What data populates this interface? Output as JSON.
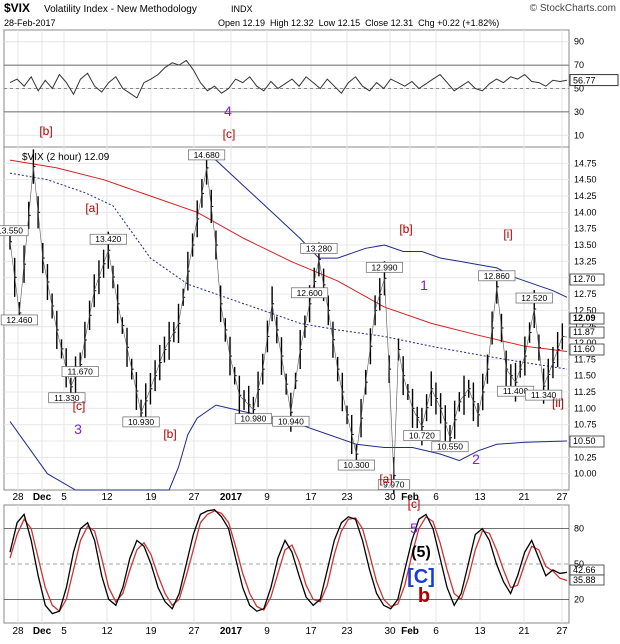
{
  "header": {
    "symbol": "$VIX",
    "name": "Volatility Index - New Methodology",
    "exchange": "INDX",
    "brand": "© StockCharts.com",
    "date": "28-Feb-2017",
    "ohlc": "Open 12.19  High 12.32  Low 12.15  Close 12.31  Chg +0.22 (+1.82%)",
    "legend": "$VIX (2 hour) 12.09"
  },
  "colors": {
    "price_line": "#000000",
    "ma_red": "#d62020",
    "ma_dotted": "#1f2a8c",
    "band": "#1f2a8c",
    "wave_red": "#b00000",
    "wave_purple": "#8a1bd6",
    "wave_blue": "#1a3cd8",
    "rsi_line": "#333333",
    "stoch_k": "#000000",
    "stoch_d": "#cc3333"
  },
  "x_axis": {
    "top_labels": [
      "28",
      "Dec",
      "5",
      "12",
      "19",
      "27",
      "2017",
      "9",
      "17",
      "23",
      "30",
      "Feb",
      "6",
      "13",
      "21",
      "27"
    ],
    "bottom_labels": [
      "28",
      "Dec",
      "5",
      "12",
      "19",
      "27",
      "2017",
      "9",
      "17",
      "23",
      "30",
      "Feb",
      "6",
      "13",
      "21",
      "27"
    ],
    "positions": [
      18,
      42,
      64,
      107,
      151,
      194,
      231,
      267,
      311,
      347,
      390,
      410,
      436,
      480,
      524,
      562
    ]
  },
  "chart_data": [
    {
      "type": "line",
      "name": "RSI panel",
      "ylim": [
        0,
        100
      ],
      "ticks": [
        10,
        30,
        50,
        70,
        90
      ],
      "reference_lines": [
        30,
        70
      ],
      "last_value_label": "56.77",
      "y": [
        55,
        58,
        52,
        60,
        48,
        57,
        50,
        62,
        55,
        45,
        58,
        63,
        52,
        47,
        55,
        60,
        50,
        46,
        42,
        55,
        58,
        62,
        68,
        72,
        70,
        74,
        66,
        55,
        48,
        52,
        46,
        50,
        58,
        55,
        60,
        52,
        48,
        56,
        50,
        54,
        58,
        52,
        60,
        55,
        50,
        58,
        52,
        46,
        55,
        60,
        52,
        48,
        55,
        50,
        58,
        55,
        52,
        56,
        50,
        54,
        58,
        62,
        55,
        48,
        52,
        56,
        50,
        48,
        54,
        58,
        55,
        60,
        58,
        62,
        56,
        55,
        52,
        57,
        56,
        57
      ]
    },
    {
      "type": "line",
      "name": "$VIX (2 hour)",
      "ylim": [
        9.75,
        15.0
      ],
      "y_ticks": [
        "10.00",
        "10.25",
        "10.50",
        "10.75",
        "11.00",
        "11.25",
        "11.50",
        "11.75",
        "12.00",
        "12.25",
        "12.50",
        "12.75",
        "13.00",
        "13.25",
        "13.50",
        "13.75",
        "14.00",
        "14.25",
        "14.50",
        "14.75"
      ],
      "right_labels": [
        "12.70",
        "12.09",
        "11.87",
        "11.60",
        "10.50"
      ],
      "price_annotations": [
        "14.680",
        "13.550",
        "12.460",
        "13.420",
        "11.670",
        "11.330",
        "10.930",
        "12.600",
        "10.980",
        "10.940",
        "13.280",
        "12.990",
        "10.300",
        "9.970",
        "10.720",
        "10.550",
        "12.860",
        "12.520",
        "11.400",
        "11.340"
      ],
      "wave_labels": {
        "red": [
          "[b]",
          "[c]",
          "[a]",
          "[c]",
          "[b]",
          "[b]",
          "[a]",
          "[c]",
          "[i]",
          "[ii]",
          "b"
        ],
        "purple": [
          "4",
          "3",
          "1",
          "2",
          "5"
        ],
        "blue": [
          "[C]"
        ],
        "black": [
          "(5)"
        ]
      },
      "price_points": [
        [
          0,
          13.55
        ],
        [
          2,
          12.46
        ],
        [
          5,
          14.7
        ],
        [
          7,
          13.3
        ],
        [
          10,
          12.2
        ],
        [
          13,
          11.33
        ],
        [
          15,
          11.67
        ],
        [
          18,
          12.8
        ],
        [
          21,
          13.42
        ],
        [
          23,
          12.6
        ],
        [
          26,
          11.6
        ],
        [
          28,
          10.93
        ],
        [
          30,
          11.3
        ],
        [
          33,
          11.9
        ],
        [
          36,
          12.3
        ],
        [
          38,
          13.1
        ],
        [
          40,
          13.9
        ],
        [
          42,
          14.68
        ],
        [
          44,
          13.5
        ],
        [
          45,
          12.6
        ],
        [
          47,
          11.8
        ],
        [
          49,
          11.2
        ],
        [
          52,
          10.98
        ],
        [
          54,
          11.6
        ],
        [
          56,
          12.6
        ],
        [
          58,
          11.8
        ],
        [
          60,
          10.94
        ],
        [
          62,
          11.9
        ],
        [
          64,
          12.6
        ],
        [
          66,
          13.28
        ],
        [
          68,
          12.5
        ],
        [
          70,
          11.6
        ],
        [
          72,
          10.9
        ],
        [
          74,
          10.3
        ],
        [
          76,
          11.4
        ],
        [
          78,
          12.5
        ],
        [
          80,
          12.99
        ],
        [
          81,
          11.6
        ],
        [
          82,
          9.97
        ],
        [
          83,
          11.9
        ],
        [
          84,
          11.5
        ],
        [
          86,
          11.0
        ],
        [
          88,
          10.72
        ],
        [
          90,
          11.3
        ],
        [
          92,
          11.0
        ],
        [
          94,
          10.55
        ],
        [
          96,
          11.1
        ],
        [
          98,
          11.3
        ],
        [
          100,
          10.9
        ],
        [
          102,
          11.6
        ],
        [
          104,
          12.86
        ],
        [
          106,
          11.6
        ],
        [
          108,
          11.4
        ],
        [
          110,
          11.8
        ],
        [
          112,
          12.52
        ],
        [
          114,
          11.34
        ],
        [
          116,
          11.7
        ],
        [
          118,
          12.1
        ],
        [
          119,
          12.09
        ]
      ],
      "ma_red_points": [
        [
          0,
          14.8
        ],
        [
          10,
          14.68
        ],
        [
          20,
          14.5
        ],
        [
          30,
          14.25
        ],
        [
          40,
          14.0
        ],
        [
          50,
          13.6
        ],
        [
          60,
          13.25
        ],
        [
          70,
          12.95
        ],
        [
          80,
          12.55
        ],
        [
          90,
          12.3
        ],
        [
          100,
          12.12
        ],
        [
          110,
          11.95
        ],
        [
          119,
          11.87
        ]
      ],
      "ma_dotted_points": [
        [
          0,
          14.6
        ],
        [
          8,
          14.5
        ],
        [
          16,
          14.3
        ],
        [
          22,
          14.1
        ],
        [
          30,
          13.3
        ],
        [
          38,
          12.9
        ],
        [
          46,
          12.7
        ],
        [
          54,
          12.5
        ],
        [
          62,
          12.3
        ],
        [
          70,
          12.2
        ],
        [
          80,
          12.1
        ],
        [
          90,
          11.95
        ],
        [
          100,
          11.82
        ],
        [
          110,
          11.7
        ],
        [
          119,
          11.6
        ]
      ],
      "band_upper_points": [
        [
          40,
          14.9
        ],
        [
          44,
          14.8
        ],
        [
          50,
          14.4
        ],
        [
          56,
          14.0
        ],
        [
          62,
          13.6
        ],
        [
          66,
          13.3
        ],
        [
          70,
          13.3
        ],
        [
          76,
          13.45
        ],
        [
          80,
          13.5
        ],
        [
          84,
          13.4
        ],
        [
          88,
          13.4
        ],
        [
          92,
          13.3
        ],
        [
          96,
          13.25
        ],
        [
          100,
          13.2
        ],
        [
          104,
          13.15
        ],
        [
          108,
          13.0
        ],
        [
          112,
          12.9
        ],
        [
          116,
          12.8
        ],
        [
          119,
          12.7
        ]
      ],
      "band_lower_points": [
        [
          0,
          10.8
        ],
        [
          8,
          10.0
        ],
        [
          14,
          9.75
        ],
        [
          34,
          9.75
        ],
        [
          36,
          10.1
        ],
        [
          38,
          10.6
        ],
        [
          40,
          10.85
        ],
        [
          44,
          11.05
        ],
        [
          50,
          10.95
        ],
        [
          56,
          10.85
        ],
        [
          62,
          10.75
        ],
        [
          68,
          10.6
        ],
        [
          74,
          10.45
        ],
        [
          80,
          10.4
        ],
        [
          86,
          10.4
        ],
        [
          92,
          10.3
        ],
        [
          96,
          10.2
        ],
        [
          100,
          10.35
        ],
        [
          104,
          10.45
        ],
        [
          110,
          10.48
        ],
        [
          119,
          10.5
        ]
      ]
    },
    {
      "type": "line",
      "name": "Stochastic panel",
      "ylim": [
        0,
        100
      ],
      "ticks": [
        20,
        50,
        80
      ],
      "reference_lines": [
        20,
        50,
        80
      ],
      "last_value_labels": [
        "42.66",
        "35.88"
      ],
      "k": [
        60,
        85,
        92,
        70,
        40,
        15,
        8,
        10,
        30,
        60,
        80,
        85,
        70,
        40,
        20,
        15,
        30,
        55,
        70,
        65,
        50,
        30,
        18,
        12,
        25,
        50,
        75,
        92,
        95,
        96,
        90,
        80,
        55,
        30,
        15,
        10,
        12,
        30,
        55,
        70,
        60,
        40,
        22,
        15,
        20,
        45,
        70,
        85,
        90,
        88,
        70,
        45,
        25,
        15,
        12,
        20,
        45,
        70,
        88,
        92,
        80,
        55,
        30,
        15,
        25,
        50,
        75,
        80,
        70,
        50,
        35,
        25,
        40,
        60,
        70,
        55,
        40,
        45,
        42,
        43
      ],
      "d": [
        55,
        75,
        88,
        80,
        55,
        30,
        15,
        10,
        20,
        45,
        70,
        82,
        78,
        55,
        30,
        18,
        25,
        45,
        62,
        68,
        58,
        40,
        25,
        15,
        20,
        40,
        62,
        85,
        92,
        95,
        93,
        85,
        65,
        42,
        25,
        14,
        11,
        22,
        42,
        62,
        66,
        52,
        32,
        20,
        18,
        32,
        58,
        78,
        88,
        89,
        80,
        58,
        35,
        20,
        14,
        16,
        32,
        58,
        80,
        90,
        86,
        68,
        45,
        25,
        20,
        38,
        62,
        78,
        76,
        62,
        45,
        30,
        32,
        50,
        65,
        62,
        48,
        44,
        38,
        36
      ]
    }
  ]
}
